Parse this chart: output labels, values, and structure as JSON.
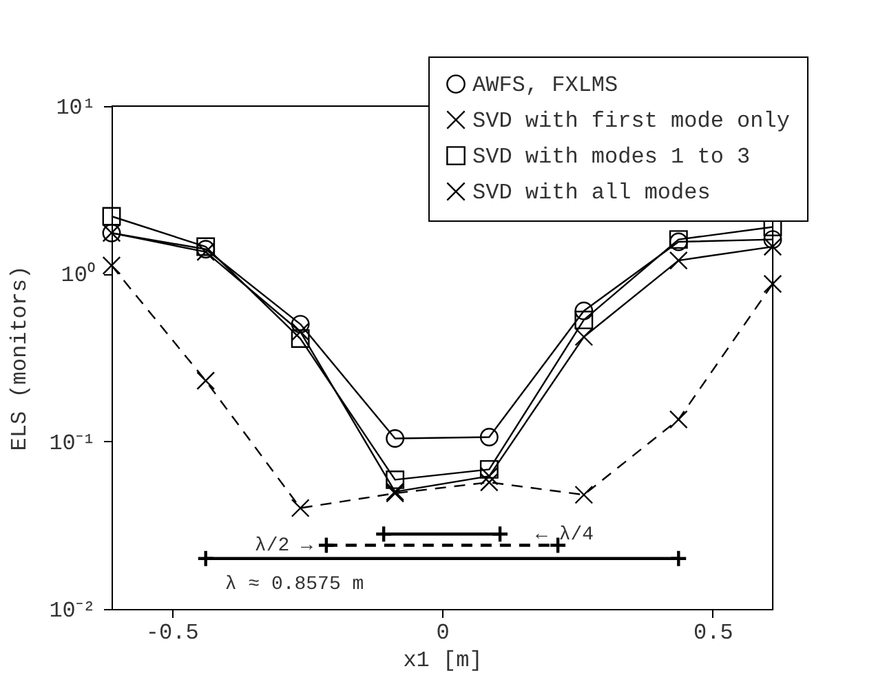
{
  "chart_data": {
    "type": "line",
    "xlabel": "x1 [m]",
    "ylabel": "ELS (monitors)",
    "log": "y",
    "grid": false,
    "legend": "top right",
    "xlim": [
      -0.611,
      0.611
    ],
    "xticks": [
      -0.5,
      0,
      0.5
    ],
    "ylim": [
      0.01,
      10
    ],
    "yticks": [
      {
        "value": 0.01,
        "label": "10⁻²"
      },
      {
        "value": 0.1,
        "label": "10⁻¹"
      },
      {
        "value": 1,
        "label": "10⁰"
      },
      {
        "value": 10,
        "label": "10¹"
      }
    ],
    "x": [
      -0.611,
      -0.437,
      -0.262,
      -0.087,
      0.087,
      0.262,
      0.437,
      0.611
    ],
    "series": [
      {
        "name": "AWFS, FXLMS",
        "color": "#000000",
        "marker": "circle",
        "line_style": "solid",
        "values": [
          1.75,
          1.4,
          0.5,
          0.104,
          0.106,
          0.6,
          1.55,
          1.6
        ]
      },
      {
        "name": "SVD with first mode only",
        "color": "#000000",
        "marker": "cross",
        "line_style": "solid",
        "values": [
          1.75,
          1.35,
          0.45,
          0.05,
          0.062,
          0.42,
          1.2,
          1.45
        ]
      },
      {
        "name": "SVD with modes 1 to 3",
        "color": "#000000",
        "marker": "square",
        "line_style": "solid",
        "values": [
          2.2,
          1.45,
          0.41,
          0.059,
          0.068,
          0.53,
          1.6,
          1.9
        ]
      },
      {
        "name": "SVD with all modes",
        "color": "#000000",
        "marker": "cross",
        "line_style": "dashed",
        "values": [
          1.12,
          0.23,
          0.04,
          0.049,
          0.057,
          0.048,
          0.135,
          0.87
        ]
      },
      {
        "type": "line",
        "color": "#000000",
        "marker": "plus",
        "line_style": "solid",
        "x": [
          -0.437,
          0.437
        ],
        "values": [
          0.02,
          0.02
        ]
      },
      {
        "type": "line",
        "color": "#000000",
        "marker": "plus",
        "line_style": "dashed",
        "x": [
          -0.214,
          0.214
        ],
        "values": [
          0.024,
          0.024
        ]
      },
      {
        "type": "line",
        "color": "#000000",
        "marker": "plus",
        "line_style": "solid",
        "x": [
          -0.108,
          0.107
        ],
        "values": [
          0.028,
          0.028
        ]
      }
    ],
    "annotations": [
      {
        "text": "λ ≈ 0.8575 m",
        "x": -0.437,
        "y": 0.02
      },
      {
        "text": "λ/2 →",
        "x": -0.214,
        "y": 0.024
      },
      {
        "text": "← λ/4",
        "x": 0.107,
        "y": 0.028
      }
    ]
  }
}
